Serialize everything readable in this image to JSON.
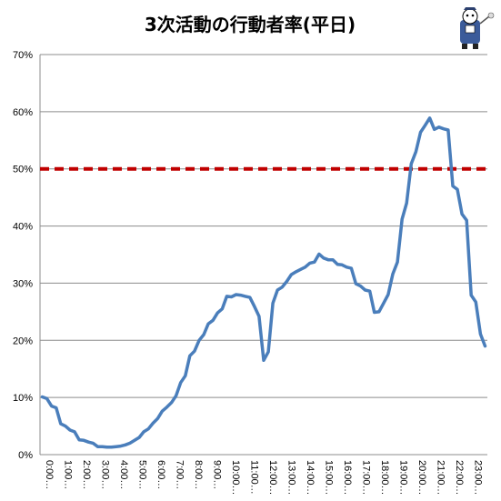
{
  "chart_data": {
    "type": "line",
    "title": "3次活動の行動者率(平日)",
    "xlabel": "",
    "ylabel": "",
    "ylim": [
      0,
      70
    ],
    "yticks": [
      "0%",
      "10%",
      "20%",
      "30%",
      "40%",
      "50%",
      "60%",
      "70%"
    ],
    "xticks": [
      "0:00…",
      "1:00…",
      "2:00…",
      "3:00…",
      "4:00…",
      "5:00…",
      "6:00…",
      "7:00…",
      "8:00…",
      "9:00…",
      "10:00…",
      "11:00…",
      "12:00…",
      "13:00…",
      "14:00…",
      "15:00…",
      "16:00…",
      "17:00…",
      "18:00…",
      "19:00…",
      "20:00…",
      "21:00…",
      "22:00…",
      "23:00…"
    ],
    "grid": true,
    "reference_line": {
      "value": 50,
      "color": "#c00000",
      "style": "dashed"
    },
    "series": [
      {
        "color": "#4a7ebb",
        "values": [
          10.1,
          9.8,
          8.5,
          8.2,
          5.4,
          5.0,
          4.3,
          4.0,
          2.6,
          2.5,
          2.2,
          2.0,
          1.4,
          1.4,
          1.3,
          1.3,
          1.4,
          1.5,
          1.7,
          2.0,
          2.5,
          3.0,
          4.0,
          4.5,
          5.5,
          6.3,
          7.6,
          8.3,
          9.1,
          10.3,
          12.6,
          13.8,
          17.3,
          18.1,
          20.0,
          21.0,
          22.9,
          23.5,
          24.8,
          25.5,
          27.7,
          27.6,
          28.0,
          27.9,
          27.7,
          27.5,
          25.9,
          24.2,
          16.5,
          18.0,
          26.5,
          28.8,
          29.3,
          30.3,
          31.5,
          32.0,
          32.4,
          32.8,
          33.5,
          33.7,
          35.1,
          34.4,
          34.1,
          34.1,
          33.3,
          33.2,
          32.8,
          32.6,
          29.9,
          29.5,
          28.8,
          28.6,
          24.9,
          25.0,
          26.5,
          28.0,
          31.6,
          33.7,
          41.2,
          44.0,
          50.9,
          53.0,
          56.4,
          57.6,
          58.9,
          56.9,
          57.3,
          57.0,
          56.8,
          47.0,
          46.4,
          42.1,
          41.0,
          27.9,
          26.7,
          21.1,
          19.0
        ]
      }
    ]
  },
  "mascot": {
    "icon": "mascot-icon"
  }
}
